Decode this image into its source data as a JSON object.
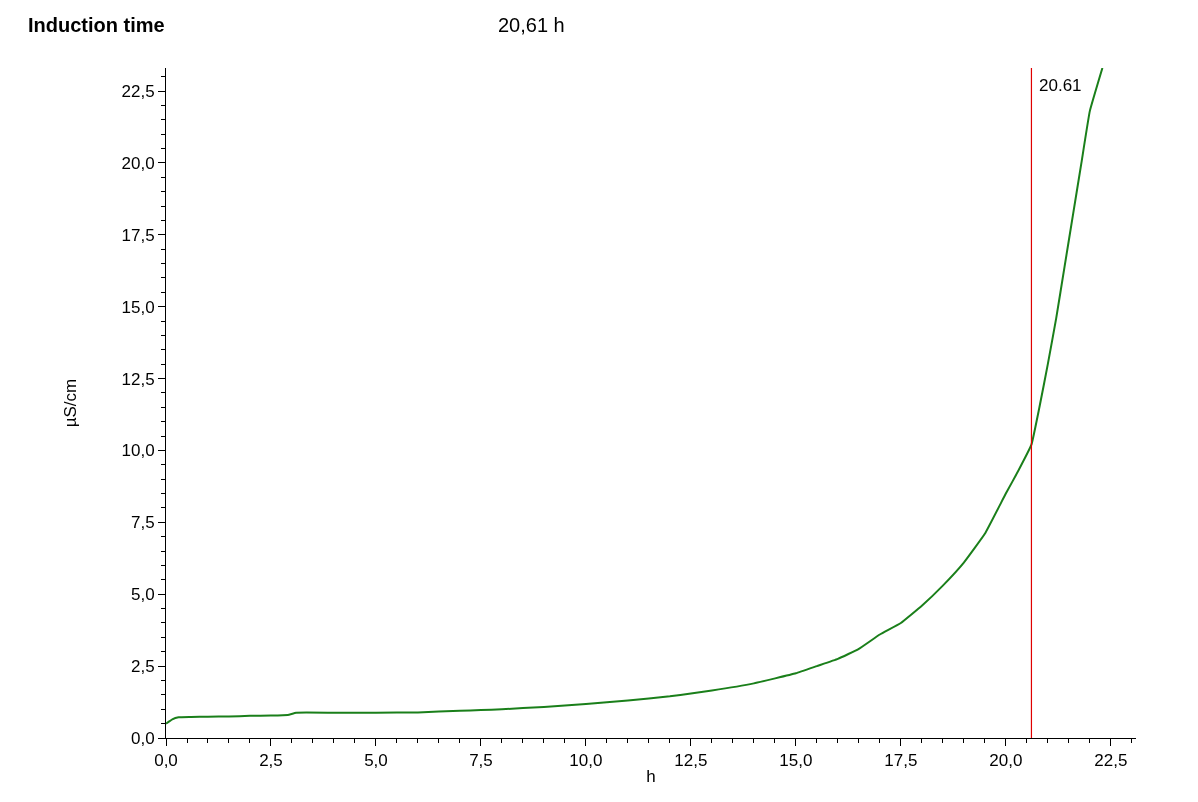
{
  "chart_data": {
    "type": "line",
    "title": "Induction time",
    "subtitle": "20,61 h",
    "xlabel": "h",
    "ylabel": "µS/cm",
    "xlim": [
      0,
      23.1
    ],
    "ylim": [
      0,
      23.3
    ],
    "xticks": [
      {
        "value": 0,
        "label": "0,0"
      },
      {
        "value": 2.5,
        "label": "2,5"
      },
      {
        "value": 5,
        "label": "5,0"
      },
      {
        "value": 7.5,
        "label": "7,5"
      },
      {
        "value": 10,
        "label": "10,0"
      },
      {
        "value": 12.5,
        "label": "12,5"
      },
      {
        "value": 15,
        "label": "15,0"
      },
      {
        "value": 17.5,
        "label": "17,5"
      },
      {
        "value": 20,
        "label": "20,0"
      },
      {
        "value": 22.5,
        "label": "22,5"
      }
    ],
    "yticks": [
      {
        "value": 0,
        "label": "0,0"
      },
      {
        "value": 2.5,
        "label": "2,5"
      },
      {
        "value": 5,
        "label": "5,0"
      },
      {
        "value": 7.5,
        "label": "7,5"
      },
      {
        "value": 10,
        "label": "10,0"
      },
      {
        "value": 12.5,
        "label": "12,5"
      },
      {
        "value": 15,
        "label": "15,0"
      },
      {
        "value": 17.5,
        "label": "17,5"
      },
      {
        "value": 20,
        "label": "20,0"
      },
      {
        "value": 22.5,
        "label": "22,5"
      }
    ],
    "marker": "none",
    "line_style": "solid",
    "series": [
      {
        "color": "#1a7f1a",
        "x": [
          0,
          0.15,
          0.3,
          0.6,
          1,
          1.5,
          2,
          2.5,
          2.9,
          3.1,
          4,
          5,
          6,
          7,
          7.5,
          8,
          9,
          10,
          11,
          12,
          12.5,
          13,
          14,
          15,
          15.5,
          16,
          16.5,
          17,
          17.5,
          18,
          18.5,
          19,
          19.5,
          20,
          20.3,
          20.61,
          20.8,
          21,
          21.2,
          21.4,
          21.6,
          21.8,
          22,
          22.3
        ],
        "values": [
          0.5,
          0.65,
          0.72,
          0.73,
          0.74,
          0.75,
          0.77,
          0.78,
          0.8,
          0.88,
          0.88,
          0.88,
          0.89,
          0.95,
          0.97,
          1.0,
          1.08,
          1.18,
          1.3,
          1.45,
          1.55,
          1.65,
          1.9,
          2.25,
          2.5,
          2.75,
          3.1,
          3.6,
          4.0,
          4.6,
          5.3,
          6.1,
          7.1,
          8.5,
          9.3,
          10.2,
          11.5,
          13,
          14.6,
          16.4,
          18.2,
          20.0,
          21.8,
          23.3
        ]
      }
    ],
    "ref_lines": [
      {
        "axis": "x",
        "value": 20.61,
        "label": "20.61",
        "color": "#e00000"
      }
    ]
  }
}
